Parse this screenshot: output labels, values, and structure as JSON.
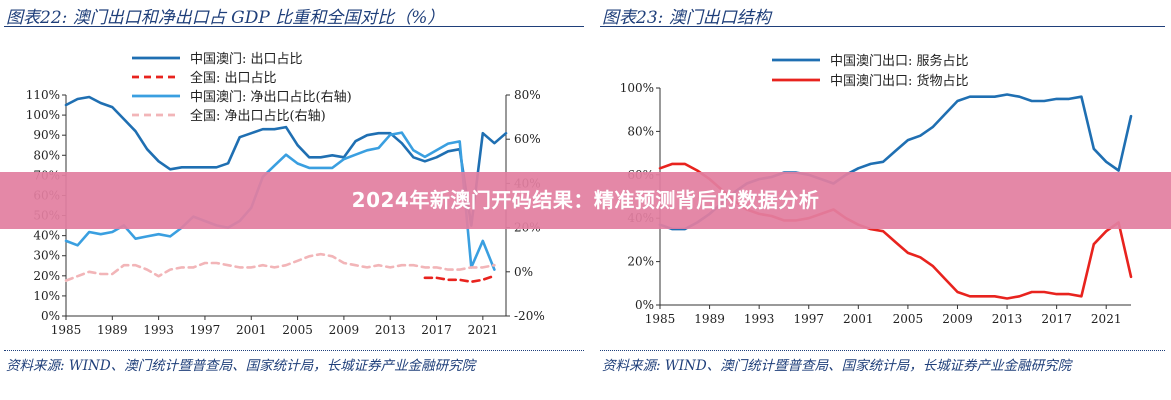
{
  "banner": {
    "text": "2024年新澳门开码结果：精准预测背后的数据分析"
  },
  "chart_data": [
    {
      "type": "line",
      "title": "图表22:  澳门出口和净出口占 GDP 比重和全国对比（%）",
      "source": "资料来源: WIND、澳门统计暨普查局、国家统计局，长城证券产业金融研究院",
      "x_ticks": [
        "1985",
        "1989",
        "1993",
        "1997",
        "2001",
        "2005",
        "2009",
        "2013",
        "2017",
        "2021"
      ],
      "y_ticks_left": [
        "0%",
        "10%",
        "20%",
        "30%",
        "40%",
        "50%",
        "60%",
        "70%",
        "80%",
        "90%",
        "100%",
        "110%"
      ],
      "y_ticks_right": [
        "-20%",
        "0%",
        "20%",
        "40%",
        "60%",
        "80%"
      ],
      "ylim_left": [
        0,
        110
      ],
      "ylim_right": [
        -20,
        80
      ],
      "legend_position": "top-center",
      "series": [
        {
          "name": "中国澳门: 出口占比",
          "axis": "left",
          "color": "#1f6fb2",
          "style": "solid",
          "x": [
            1985,
            1986,
            1987,
            1988,
            1989,
            1990,
            1991,
            1992,
            1993,
            1994,
            1995,
            1996,
            1997,
            1998,
            1999,
            2000,
            2001,
            2002,
            2003,
            2004,
            2005,
            2006,
            2007,
            2008,
            2009,
            2010,
            2011,
            2012,
            2013,
            2014,
            2015,
            2016,
            2017,
            2018,
            2019,
            2020,
            2021,
            2022,
            2023
          ],
          "values": [
            105,
            108,
            109,
            106,
            104,
            98,
            92,
            83,
            77,
            73,
            74,
            74,
            74,
            74,
            76,
            89,
            91,
            93,
            93,
            94,
            85,
            79,
            79,
            80,
            79,
            87,
            90,
            91,
            91,
            86,
            79,
            77,
            79,
            82,
            83,
            45,
            91,
            86,
            91
          ]
        },
        {
          "name": "全国: 出口占比",
          "axis": "left",
          "color": "#e8231e",
          "style": "dashed",
          "x": [
            2016,
            2017,
            2018,
            2019,
            2020,
            2021,
            2022
          ],
          "values": [
            19,
            19,
            18,
            18,
            17,
            18,
            20
          ]
        },
        {
          "name": "中国澳门: 净出口占比(右轴)",
          "axis": "right",
          "color": "#3a9fe0",
          "style": "solid",
          "x": [
            1985,
            1986,
            1987,
            1988,
            1989,
            1990,
            1991,
            1992,
            1993,
            1994,
            1995,
            1996,
            1997,
            1998,
            1999,
            2000,
            2001,
            2002,
            2003,
            2004,
            2005,
            2006,
            2007,
            2008,
            2009,
            2010,
            2011,
            2012,
            2013,
            2014,
            2015,
            2016,
            2017,
            2018,
            2019,
            2020,
            2021,
            2022
          ],
          "values": [
            14,
            12,
            18,
            17,
            18,
            21,
            15,
            16,
            17,
            16,
            20,
            25,
            23,
            21,
            20,
            23,
            29,
            43,
            48,
            53,
            49,
            47,
            47,
            47,
            51,
            53,
            55,
            56,
            62,
            63,
            55,
            52,
            55,
            58,
            59,
            2,
            14,
            1
          ]
        },
        {
          "name": "全国: 净出口占比(右轴)",
          "axis": "right",
          "color": "#f2b5b8",
          "style": "dashed",
          "x": [
            1985,
            1986,
            1987,
            1988,
            1989,
            1990,
            1991,
            1992,
            1993,
            1994,
            1995,
            1996,
            1997,
            1998,
            1999,
            2000,
            2001,
            2002,
            2003,
            2004,
            2005,
            2006,
            2007,
            2008,
            2009,
            2010,
            2011,
            2012,
            2013,
            2014,
            2015,
            2016,
            2017,
            2018,
            2019,
            2020,
            2021,
            2022
          ],
          "values": [
            -4,
            -2,
            0,
            -1,
            -1,
            3,
            3,
            1,
            -2,
            1,
            2,
            2,
            4,
            4,
            3,
            2,
            2,
            3,
            2,
            3,
            5,
            7,
            8,
            7,
            4,
            3,
            2,
            3,
            2,
            3,
            3,
            2,
            2,
            1,
            1,
            2,
            2,
            3
          ]
        }
      ]
    },
    {
      "type": "line",
      "title": "图表23:  澳门出口结构",
      "source": "资料来源: WIND、澳门统计暨普查局、国家统计局，长城证券产业金融研究院",
      "x_ticks": [
        "1985",
        "1989",
        "1993",
        "1997",
        "2001",
        "2005",
        "2009",
        "2013",
        "2017",
        "2021"
      ],
      "y_ticks_left": [
        "0%",
        "20%",
        "40%",
        "60%",
        "80%",
        "100%"
      ],
      "ylim_left": [
        0,
        100
      ],
      "legend_position": "top-center",
      "series": [
        {
          "name": "中国澳门出口: 服务占比",
          "axis": "left",
          "color": "#1f6fb2",
          "style": "solid",
          "x": [
            1985,
            1986,
            1987,
            1988,
            1989,
            1990,
            1991,
            1992,
            1993,
            1994,
            1995,
            1996,
            1997,
            1998,
            1999,
            2000,
            2001,
            2002,
            2003,
            2004,
            2005,
            2006,
            2007,
            2008,
            2009,
            2010,
            2011,
            2012,
            2013,
            2014,
            2015,
            2016,
            2017,
            2018,
            2019,
            2020,
            2021,
            2022,
            2023
          ],
          "values": [
            37,
            35,
            35,
            38,
            42,
            47,
            52,
            56,
            58,
            59,
            61,
            61,
            60,
            58,
            56,
            60,
            63,
            65,
            66,
            71,
            76,
            78,
            82,
            88,
            94,
            96,
            96,
            96,
            97,
            96,
            94,
            94,
            95,
            95,
            96,
            72,
            66,
            62,
            87
          ]
        },
        {
          "name": "中国澳门出口: 货物占比",
          "axis": "left",
          "color": "#e8231e",
          "style": "solid",
          "x": [
            1985,
            1986,
            1987,
            1988,
            1989,
            1990,
            1991,
            1992,
            1993,
            1994,
            1995,
            1996,
            1997,
            1998,
            1999,
            2000,
            2001,
            2002,
            2003,
            2004,
            2005,
            2006,
            2007,
            2008,
            2009,
            2010,
            2011,
            2012,
            2013,
            2014,
            2015,
            2016,
            2017,
            2018,
            2019,
            2020,
            2021,
            2022,
            2023
          ],
          "values": [
            63,
            65,
            65,
            62,
            58,
            53,
            48,
            44,
            42,
            41,
            39,
            39,
            40,
            42,
            44,
            40,
            37,
            35,
            34,
            29,
            24,
            22,
            18,
            12,
            6,
            4,
            4,
            4,
            3,
            4,
            6,
            6,
            5,
            5,
            4,
            28,
            34,
            38,
            13
          ]
        }
      ]
    }
  ]
}
